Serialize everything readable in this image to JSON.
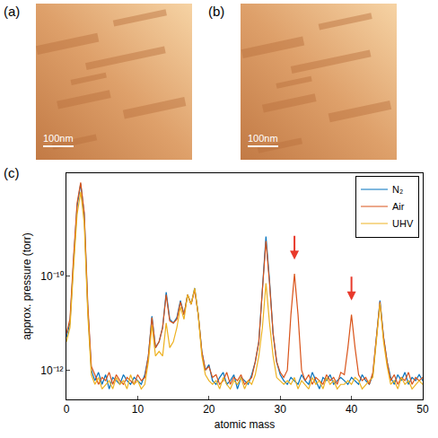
{
  "panels": [
    {
      "label": "(a)",
      "scale_bar": "100nm"
    },
    {
      "label": "(b)",
      "scale_bar": "100nm"
    }
  ],
  "chart_data": {
    "type": "line",
    "title": "(c)",
    "x_label": "atomic mass",
    "y_label": "approx. pressure (torr)",
    "log": "y",
    "grid": false,
    "legend": "upper right",
    "xlim": [
      0,
      50
    ],
    "xticks": [
      0,
      10,
      20,
      30,
      40,
      50
    ],
    "ylim": [
      2.4e-13,
      1.5e-08
    ],
    "yticks": [
      {
        "value": 1e-12,
        "label": "10⁻¹²"
      },
      {
        "value": 1e-10,
        "label": "10⁻¹⁰"
      }
    ],
    "x": [
      0,
      0.5,
      1,
      1.5,
      2,
      2.5,
      3,
      3.5,
      4,
      4.5,
      5,
      5.5,
      6,
      6.5,
      7,
      7.5,
      8,
      8.5,
      9,
      9.5,
      10,
      10.5,
      11,
      11.5,
      12,
      12.5,
      13,
      13.5,
      14,
      14.5,
      15,
      15.5,
      16,
      16.5,
      17,
      17.5,
      18,
      18.5,
      19,
      19.5,
      20,
      20.5,
      21,
      21.5,
      22,
      22.5,
      23,
      23.5,
      24,
      24.5,
      25,
      25.5,
      26,
      26.5,
      27,
      27.5,
      28,
      28.5,
      29,
      29.5,
      30,
      30.5,
      31,
      31.5,
      32,
      32.5,
      33,
      33.5,
      34,
      34.5,
      35,
      35.5,
      36,
      36.5,
      37,
      37.5,
      38,
      38.5,
      39,
      39.5,
      40,
      40.5,
      41,
      41.5,
      42,
      42.5,
      43,
      43.5,
      44,
      44.5,
      45,
      45.5,
      46,
      46.5,
      47,
      47.5,
      48,
      48.5,
      49,
      49.5,
      50
    ],
    "series": [
      {
        "name": "N₂",
        "color": "#0072bd",
        "values": [
          5e-12,
          1e-11,
          2e-10,
          3e-09,
          9e-09,
          2e-09,
          2e-11,
          1e-12,
          6e-13,
          9e-13,
          5e-13,
          8e-13,
          4e-13,
          7e-13,
          6e-13,
          5e-13,
          8e-13,
          6e-13,
          5e-13,
          7e-13,
          6e-13,
          5e-13,
          8e-13,
          2e-12,
          1.4e-11,
          3e-12,
          4e-12,
          8e-12,
          4.5e-11,
          1.2e-11,
          1e-11,
          1.3e-11,
          3e-11,
          1.5e-11,
          4e-11,
          2.5e-11,
          5.5e-11,
          1.5e-11,
          2.5e-12,
          1e-12,
          1.3e-12,
          6e-13,
          5e-13,
          7e-13,
          9e-13,
          5e-13,
          6e-13,
          8e-13,
          4e-13,
          7e-13,
          6e-13,
          5e-13,
          8e-13,
          1.5e-12,
          4e-12,
          6e-11,
          6.8e-10,
          8e-11,
          6e-12,
          1.5e-12,
          8e-13,
          6e-13,
          5e-13,
          7e-13,
          6e-13,
          5e-13,
          8e-13,
          6e-13,
          5e-13,
          9e-13,
          6e-13,
          4e-13,
          7e-13,
          6e-13,
          8e-13,
          5e-13,
          6e-13,
          7e-13,
          6e-13,
          5e-13,
          7e-13,
          6e-13,
          5e-13,
          8e-13,
          6e-13,
          5e-13,
          8e-13,
          5e-12,
          3e-11,
          5e-12,
          1.5e-12,
          7e-13,
          5e-13,
          8e-13,
          6e-13,
          9e-13,
          5e-13,
          7e-13,
          6e-13,
          8e-13,
          6e-13
        ]
      },
      {
        "name": "Air",
        "color": "#d95319",
        "values": [
          6e-12,
          1.2e-11,
          2.5e-10,
          3.5e-09,
          9.5e-09,
          2.2e-09,
          2.5e-11,
          1.2e-12,
          8e-13,
          5e-13,
          7e-13,
          6e-13,
          9e-13,
          5e-13,
          8e-13,
          6e-13,
          5e-13,
          7e-13,
          6e-13,
          5e-13,
          8e-13,
          6e-13,
          7e-13,
          2e-12,
          1.3e-11,
          3e-12,
          4e-12,
          8e-12,
          4e-11,
          1.1e-11,
          1e-11,
          1.2e-11,
          2.8e-11,
          1.5e-11,
          4e-11,
          2.5e-11,
          5e-11,
          1.5e-11,
          2.5e-12,
          1e-12,
          1.2e-12,
          7e-13,
          8e-13,
          5e-13,
          6e-13,
          9e-13,
          5e-13,
          7e-13,
          6e-13,
          8e-13,
          5e-13,
          6e-13,
          7e-13,
          1.5e-12,
          4e-12,
          5e-11,
          5.5e-10,
          7e-11,
          6e-12,
          1.5e-12,
          9e-13,
          7e-13,
          1e-12,
          1.5e-11,
          1.1e-10,
          1.5e-11,
          1e-12,
          6e-13,
          8e-13,
          5e-13,
          7e-13,
          6e-13,
          5e-13,
          8e-13,
          6e-13,
          7e-13,
          5e-13,
          9e-13,
          8e-13,
          3e-12,
          1.5e-11,
          3e-12,
          8e-13,
          6e-13,
          7e-13,
          5e-13,
          9e-13,
          5e-12,
          2.8e-11,
          5e-12,
          1.5e-12,
          6e-13,
          8e-13,
          5e-13,
          7e-13,
          6e-13,
          9e-13,
          5e-13,
          7e-13,
          6e-13,
          7e-13
        ]
      },
      {
        "name": "UHV",
        "color": "#edb120",
        "values": [
          4e-12,
          8e-12,
          1.5e-10,
          2e-09,
          6e-09,
          1.3e-09,
          1.5e-11,
          8e-13,
          5e-13,
          7e-13,
          4e-13,
          5e-13,
          6e-13,
          4e-13,
          7e-13,
          5e-13,
          6e-13,
          4e-13,
          8e-13,
          5e-13,
          6e-13,
          4e-13,
          5e-13,
          1.5e-12,
          9e-12,
          2e-12,
          2.5e-12,
          2e-12,
          1e-11,
          3e-12,
          4e-12,
          8e-12,
          2.2e-11,
          1.2e-11,
          4e-11,
          2.5e-11,
          5.5e-11,
          1.5e-11,
          2e-12,
          8e-13,
          6e-13,
          5e-13,
          6e-13,
          4e-13,
          7e-13,
          5e-13,
          4e-13,
          6e-13,
          5e-13,
          7e-13,
          4e-13,
          6e-13,
          5e-13,
          8e-13,
          2e-12,
          8e-12,
          7e-11,
          1e-11,
          2e-12,
          7e-13,
          6e-13,
          5e-13,
          6e-13,
          5e-13,
          7e-13,
          4e-13,
          6e-13,
          5e-13,
          4e-13,
          7e-13,
          5e-13,
          6e-13,
          4e-13,
          7e-13,
          5e-13,
          6e-13,
          4e-13,
          5e-13,
          5e-13,
          6e-13,
          5e-13,
          7e-13,
          6e-13,
          4e-13,
          5e-13,
          6e-13,
          7e-13,
          4e-12,
          2.6e-11,
          4e-12,
          1.2e-12,
          5e-13,
          6e-13,
          4e-13,
          7e-13,
          5e-13,
          6e-13,
          4e-13,
          5e-13,
          6e-13,
          5e-13
        ]
      }
    ],
    "arrows": [
      {
        "x": 32,
        "y": 2.2e-10,
        "color": "#e8392b"
      },
      {
        "x": 40,
        "y": 3e-11,
        "color": "#e8392b"
      }
    ]
  }
}
